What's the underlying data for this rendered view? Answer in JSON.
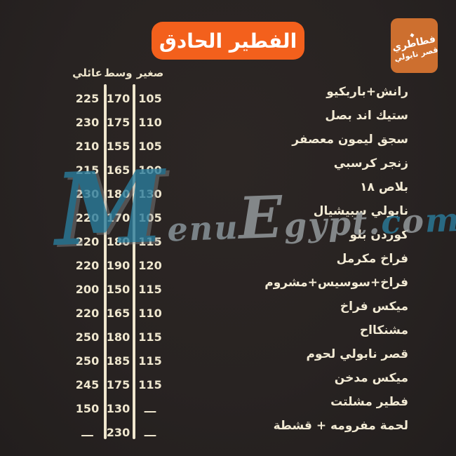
{
  "header": {
    "title": "الفطير الحادق"
  },
  "brand_logo": {
    "diamond": "◆",
    "line1": "فطاطري",
    "line2": "قصر نابولي"
  },
  "price_columns": [
    {
      "key": "family",
      "label": "عائلي"
    },
    {
      "key": "medium",
      "label": "وسط"
    },
    {
      "key": "small",
      "label": "صغير"
    }
  ],
  "menu_items": [
    {
      "name": "رانش+باربكيو",
      "family": "225",
      "medium": "170",
      "small": "105"
    },
    {
      "name": "ستيك اند بصل",
      "family": "230",
      "medium": "175",
      "small": "110"
    },
    {
      "name": "سجق ليمون معصفر",
      "family": "210",
      "medium": "155",
      "small": "105"
    },
    {
      "name": "زنجر كرسبي",
      "family": "215",
      "medium": "165",
      "small": "100"
    },
    {
      "name": "بلاص ١٨",
      "family": "230",
      "medium": "180",
      "small": "130"
    },
    {
      "name": "نابولي سبيشيال",
      "family": "220",
      "medium": "170",
      "small": "105"
    },
    {
      "name": "كوردن بلو",
      "family": "220",
      "medium": "180",
      "small": "115"
    },
    {
      "name": "فراخ مكرمل",
      "family": "220",
      "medium": "190",
      "small": "120"
    },
    {
      "name": "فراخ+سوسيس+مشروم",
      "family": "200",
      "medium": "150",
      "small": "115"
    },
    {
      "name": "ميكس فراخ",
      "family": "220",
      "medium": "165",
      "small": "110"
    },
    {
      "name": "مشنكااح",
      "family": "250",
      "medium": "180",
      "small": "115"
    },
    {
      "name": "قصر نابولي لحوم",
      "family": "250",
      "medium": "185",
      "small": "115"
    },
    {
      "name": "ميكس مدخن",
      "family": "245",
      "medium": "175",
      "small": "115"
    },
    {
      "name": "فطير مشلتت",
      "family": "150",
      "medium": "130",
      "small": "ـــ"
    },
    {
      "name": "لحمة مفرومه + قشطة",
      "family": "ـــ",
      "medium": "230",
      "small": "ـــ"
    }
  ],
  "watermark": {
    "full_text": "MenuEgypt.com",
    "segments": [
      {
        "text": "M",
        "size": "xl",
        "color": "#2a7c9c"
      },
      {
        "text": "enu",
        "size": "md",
        "color": "#8d9aa0"
      },
      {
        "text": "E",
        "size": "lg",
        "color": "#9aa0a3"
      },
      {
        "text": "gypt",
        "size": "md",
        "color": "#9aa0a3"
      },
      {
        "text": ".",
        "size": "md",
        "color": "#9aa0a3"
      },
      {
        "text": "c",
        "size": "md",
        "color": "#2a7c9c"
      },
      {
        "text": "o",
        "size": "md",
        "color": "#9aa0a3"
      },
      {
        "text": "m",
        "size": "md",
        "color": "#2a7c9c"
      }
    ]
  },
  "colors": {
    "background": "#282322",
    "title_badge_orange": "#f3601c",
    "logo_orange": "#cd6f2f",
    "text_cream": "#f0e8d0",
    "divider_cream": "#efe6cd",
    "watermark_teal": "#2a7c9c",
    "watermark_gray": "#9aa0a3",
    "title_text_white": "#ffffff"
  }
}
